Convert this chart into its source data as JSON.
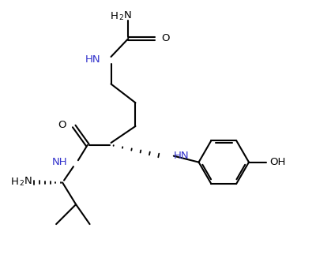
{
  "bg_color": "#ffffff",
  "line_color": "#000000",
  "label_color": "#3333cc",
  "line_width": 1.5,
  "figsize": [
    4.0,
    3.22
  ],
  "dpi": 100,
  "xlim": [
    0,
    10
  ],
  "ylim": [
    0,
    8.05
  ]
}
